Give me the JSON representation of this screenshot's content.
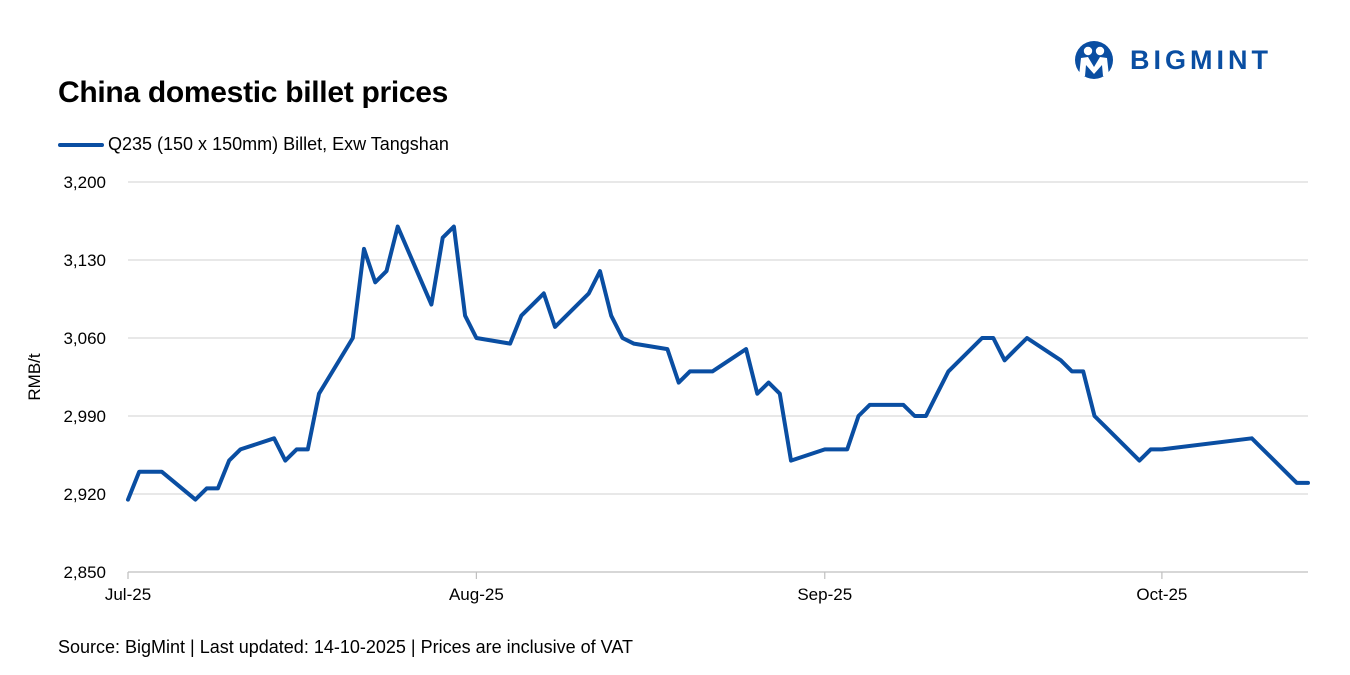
{
  "title": "China domestic billet prices",
  "source_note": "Source: BigMint | Last updated: 14-10-2025 | Prices are inclusive of VAT",
  "logo": {
    "text": "BIGMINT",
    "color": "#0a4ea2"
  },
  "colors": {
    "series": "#0a4ea2",
    "grid": "#d9d9d9",
    "axis": "#bfbfbf"
  },
  "chart_data": {
    "type": "line",
    "title": "China domestic billet prices",
    "xlabel": "",
    "ylabel": "RMB/t",
    "ylim": [
      2850,
      3200
    ],
    "yticks": [
      2850,
      2920,
      2990,
      3060,
      3130,
      3200
    ],
    "ytick_labels": [
      "2,850",
      "2,920",
      "2,990",
      "3,060",
      "3,130",
      "3,200"
    ],
    "xlim": [
      "2025-07-01",
      "2025-10-14"
    ],
    "xticks": [
      "2025-07-01",
      "2025-08-01",
      "2025-09-01",
      "2025-10-01"
    ],
    "xtick_labels": [
      "Jul-25",
      "Aug-25",
      "Sep-25",
      "Oct-25"
    ],
    "grid": true,
    "legend": "top-left",
    "series": [
      {
        "name": "Q235 (150 x 150mm) Billet, Exw Tangshan",
        "x": [
          "2025-07-01",
          "2025-07-02",
          "2025-07-03",
          "2025-07-04",
          "2025-07-07",
          "2025-07-08",
          "2025-07-09",
          "2025-07-10",
          "2025-07-11",
          "2025-07-14",
          "2025-07-15",
          "2025-07-16",
          "2025-07-17",
          "2025-07-18",
          "2025-07-21",
          "2025-07-22",
          "2025-07-23",
          "2025-07-24",
          "2025-07-25",
          "2025-07-28",
          "2025-07-29",
          "2025-07-30",
          "2025-07-31",
          "2025-08-01",
          "2025-08-04",
          "2025-08-05",
          "2025-08-06",
          "2025-08-07",
          "2025-08-08",
          "2025-08-11",
          "2025-08-12",
          "2025-08-13",
          "2025-08-14",
          "2025-08-15",
          "2025-08-18",
          "2025-08-19",
          "2025-08-20",
          "2025-08-21",
          "2025-08-22",
          "2025-08-25",
          "2025-08-26",
          "2025-08-27",
          "2025-08-28",
          "2025-08-29",
          "2025-09-01",
          "2025-09-02",
          "2025-09-03",
          "2025-09-04",
          "2025-09-05",
          "2025-09-08",
          "2025-09-09",
          "2025-09-10",
          "2025-09-11",
          "2025-09-12",
          "2025-09-15",
          "2025-09-16",
          "2025-09-17",
          "2025-09-18",
          "2025-09-19",
          "2025-09-22",
          "2025-09-23",
          "2025-09-24",
          "2025-09-25",
          "2025-09-26",
          "2025-09-29",
          "2025-09-30",
          "2025-10-01",
          "2025-10-09",
          "2025-10-10",
          "2025-10-13",
          "2025-10-14"
        ],
        "y": [
          2915,
          2940,
          2940,
          2940,
          2915,
          2925,
          2925,
          2950,
          2960,
          2970,
          2950,
          2960,
          2960,
          3010,
          3060,
          3140,
          3110,
          3120,
          3160,
          3090,
          3150,
          3160,
          3080,
          3060,
          3055,
          3080,
          3090,
          3100,
          3070,
          3100,
          3120,
          3080,
          3060,
          3055,
          3050,
          3020,
          3030,
          3030,
          3030,
          3050,
          3010,
          3020,
          3010,
          2950,
          2960,
          2960,
          2960,
          2990,
          3000,
          3000,
          2990,
          2990,
          3010,
          3030,
          3060,
          3060,
          3040,
          3050,
          3060,
          3040,
          3030,
          3030,
          2990,
          2980,
          2950,
          2960,
          2960,
          2970,
          2960,
          2930,
          2930
        ]
      }
    ]
  }
}
